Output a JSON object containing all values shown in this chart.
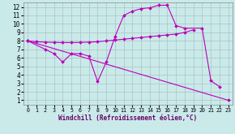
{
  "background_color": "#caeaea",
  "grid_color": "#b0c8c8",
  "line_color": "#bb00bb",
  "xlim": [
    -0.5,
    23.5
  ],
  "ylim": [
    0.5,
    12.5
  ],
  "xticks": [
    0,
    1,
    2,
    3,
    4,
    5,
    6,
    7,
    8,
    9,
    10,
    11,
    12,
    13,
    14,
    15,
    16,
    17,
    18,
    19,
    20,
    21,
    22,
    23
  ],
  "yticks": [
    1,
    2,
    3,
    4,
    5,
    6,
    7,
    8,
    9,
    10,
    11,
    12
  ],
  "xlabel": "Windchill (Refroidissement éolien,°C)",
  "line1_x": [
    0,
    1,
    2,
    3,
    4,
    5,
    6,
    7,
    8,
    9,
    10,
    11,
    12,
    13,
    14,
    15,
    16,
    17,
    18,
    19
  ],
  "line1_y": [
    8.0,
    7.9,
    7.85,
    7.82,
    7.8,
    7.8,
    7.82,
    7.85,
    7.9,
    8.0,
    8.1,
    8.2,
    8.3,
    8.4,
    8.5,
    8.6,
    8.7,
    8.8,
    9.0,
    9.3
  ],
  "line2_x": [
    0,
    23
  ],
  "line2_y": [
    8.0,
    1.0
  ],
  "line3_x": [
    0,
    2,
    3,
    4,
    5,
    6,
    7,
    8,
    9,
    10,
    11,
    12,
    13,
    14,
    15,
    16,
    17,
    18,
    20,
    21,
    22
  ],
  "line3_y": [
    8.0,
    7.0,
    6.5,
    5.5,
    6.5,
    6.5,
    6.2,
    3.2,
    5.5,
    8.5,
    11.0,
    11.5,
    11.8,
    11.9,
    12.2,
    12.2,
    9.8,
    9.5,
    9.5,
    3.3,
    2.6
  ]
}
